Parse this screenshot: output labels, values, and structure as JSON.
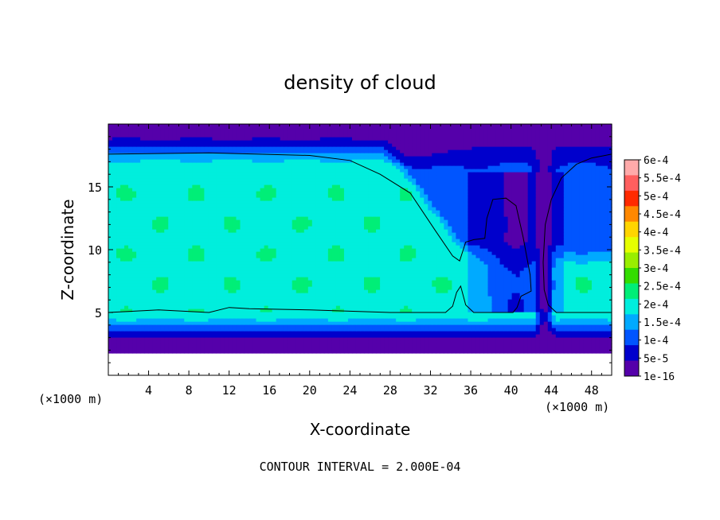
{
  "chart_data": {
    "type": "heatmap",
    "title": "density of cloud",
    "xlabel": "X-coordinate",
    "ylabel": "Z-coordinate",
    "x_unit_left": "(×1000 m)",
    "x_unit_right": "(×1000 m)",
    "xlim": [
      0,
      50
    ],
    "ylim": [
      0,
      20
    ],
    "xticks": [
      4,
      8,
      12,
      16,
      20,
      24,
      28,
      32,
      36,
      40,
      44,
      48
    ],
    "yticks": [
      5,
      10,
      15
    ],
    "footer": "CONTOUR INTERVAL = 2.000E-04",
    "colorbar": {
      "labels": [
        "6e-4",
        "5.5e-4",
        "5e-4",
        "4.5e-4",
        "4e-4",
        "3.5e-4",
        "3e-4",
        "2.5e-4",
        "2e-4",
        "1.5e-4",
        "1e-4",
        "5e-5",
        "1e-16"
      ],
      "colors": [
        "#ffaaaa",
        "#ff5f5f",
        "#ff2a00",
        "#ff8800",
        "#ffd500",
        "#e6ff00",
        "#99ee00",
        "#33dd00",
        "#00ee77",
        "#00eedd",
        "#00aaff",
        "#0055ff",
        "#0000cc",
        "#5500aa"
      ]
    },
    "field": {
      "description": "cloud density field, x in km (0-50), z in km (0-20)",
      "base_value": 0.00024,
      "band_top": 17.6,
      "band_bottom": 5.0,
      "cloud_base": 2.2,
      "hole": {
        "x_center": 40.5,
        "x_halfwidth": 3.2,
        "z_bottom": 5.0,
        "z_top": 14.2
      },
      "cone": {
        "x_at_top": 27,
        "x_at_bottom": 35,
        "z_top": 17.6,
        "z_bottom": 9
      },
      "gap": {
        "x_center": 43.3,
        "x_halfwidth": 1.3
      }
    }
  }
}
